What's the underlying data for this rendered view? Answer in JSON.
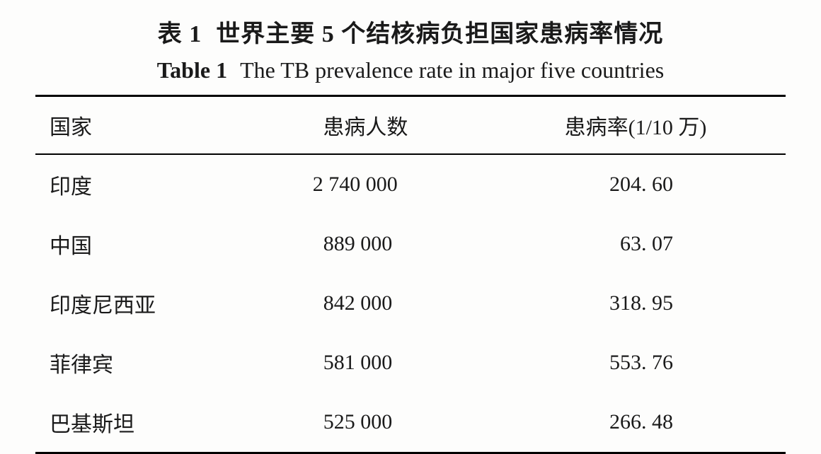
{
  "caption": {
    "cn_prefix": "表 1",
    "cn_text": "世界主要 5 个结核病负担国家患病率情况",
    "en_prefix": "Table 1",
    "en_text": "The TB prevalence rate in major five countries"
  },
  "table": {
    "columns": [
      "国家",
      "患病人数",
      "患病率(1/10 万)"
    ],
    "rows": [
      {
        "country": "印度",
        "cases": "2 740 000",
        "rate": "204. 60"
      },
      {
        "country": "中国",
        "cases": "  889 000",
        "rate": "  63. 07"
      },
      {
        "country": "印度尼西亚",
        "cases": "  842 000",
        "rate": "318. 95"
      },
      {
        "country": "菲律宾",
        "cases": "  581 000",
        "rate": "553. 76"
      },
      {
        "country": "巴基斯坦",
        "cases": "  525 000",
        "rate": "266. 48"
      }
    ]
  },
  "styling": {
    "background_color": "#fdfdfc",
    "text_color": "#1a1a1a",
    "border_color": "#000000",
    "cn_font": "SimSun",
    "en_font": "Times New Roman",
    "title_fontsize": 34,
    "subtitle_fontsize": 32,
    "body_fontsize": 30,
    "top_rule_width": 3,
    "mid_rule_width": 2,
    "bottom_rule_width": 3
  }
}
